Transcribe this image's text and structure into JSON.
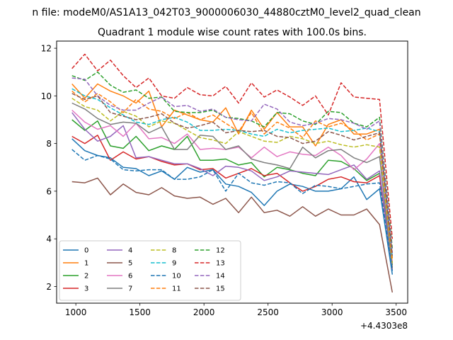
{
  "suptitle": "n file: modeM0/AS1A13_042T03_9000006030_44880cztM0_level2_quad_clean",
  "chart_data": {
    "type": "line",
    "title": "Quadrant 1 module wise count rates with 100.0s bins.",
    "xlabel": "",
    "ylabel": "",
    "x_offset_label": "+4.4303e8",
    "xlim": [
      850,
      3590
    ],
    "ylim": [
      1.3,
      12.3
    ],
    "xticks": [
      1000,
      1500,
      2000,
      2500,
      3000,
      3500
    ],
    "yticks": [
      2,
      4,
      6,
      8,
      10,
      12
    ],
    "grid": false,
    "legend": {
      "placement": "lower-left",
      "columns": 4
    },
    "x": [
      970,
      1070,
      1170,
      1270,
      1370,
      1470,
      1570,
      1670,
      1770,
      1870,
      1970,
      2070,
      2170,
      2270,
      2370,
      2470,
      2570,
      2670,
      2770,
      2870,
      2970,
      3070,
      3170,
      3270,
      3370,
      3470
    ],
    "series": [
      {
        "name": "0",
        "color": "#1f77b4",
        "dash": "solid",
        "values": [
          8.2,
          7.7,
          7.5,
          7.4,
          7.0,
          6.95,
          6.65,
          6.85,
          6.5,
          7.0,
          6.8,
          6.9,
          6.3,
          6.2,
          5.95,
          5.4,
          6.0,
          6.3,
          6.2,
          6.0,
          6.0,
          6.1,
          6.6,
          5.65,
          6.1,
          2.5
        ]
      },
      {
        "name": "1",
        "color": "#ff7f0e",
        "dash": "solid",
        "values": [
          10.5,
          9.9,
          10.5,
          10.2,
          10.0,
          9.7,
          10.2,
          8.7,
          9.4,
          9.2,
          9.0,
          8.9,
          9.5,
          8.4,
          9.4,
          8.6,
          9.3,
          8.7,
          8.7,
          7.9,
          8.8,
          9.0,
          8.4,
          8.4,
          8.6,
          3.2
        ]
      },
      {
        "name": "2",
        "color": "#2ca02c",
        "dash": "solid",
        "values": [
          9.0,
          8.55,
          8.95,
          7.9,
          7.8,
          8.3,
          7.7,
          7.9,
          7.75,
          8.3,
          7.3,
          7.3,
          7.35,
          7.1,
          7.2,
          6.6,
          7.0,
          6.9,
          6.75,
          6.65,
          7.3,
          7.25,
          6.95,
          6.45,
          6.75,
          2.9
        ]
      },
      {
        "name": "3",
        "color": "#d62728",
        "dash": "solid",
        "values": [
          8.3,
          8.0,
          8.35,
          7.3,
          7.65,
          7.35,
          7.45,
          7.25,
          7.1,
          7.15,
          6.9,
          6.95,
          6.55,
          6.75,
          6.95,
          6.65,
          6.75,
          6.35,
          6.0,
          6.2,
          6.5,
          6.6,
          6.4,
          6.35,
          6.65,
          2.8
        ]
      },
      {
        "name": "4",
        "color": "#9467bd",
        "dash": "solid",
        "values": [
          9.3,
          8.6,
          8.1,
          8.3,
          8.75,
          7.4,
          7.45,
          7.3,
          7.15,
          7.15,
          6.95,
          6.65,
          7.05,
          7.0,
          6.85,
          6.45,
          6.6,
          6.85,
          6.8,
          6.75,
          6.7,
          6.9,
          7.1,
          6.5,
          6.85,
          2.7
        ]
      },
      {
        "name": "5",
        "color": "#8c564b",
        "dash": "solid",
        "values": [
          6.4,
          6.35,
          6.55,
          5.85,
          6.3,
          5.95,
          5.85,
          6.15,
          5.8,
          5.7,
          5.75,
          5.45,
          5.7,
          5.1,
          5.75,
          5.1,
          5.2,
          4.95,
          5.35,
          4.95,
          5.25,
          5.0,
          5.0,
          5.25,
          4.6,
          1.75
        ]
      },
      {
        "name": "6",
        "color": "#e377c2",
        "dash": "solid",
        "values": [
          9.4,
          8.9,
          8.6,
          8.75,
          8.3,
          8.85,
          8.2,
          8.25,
          8.0,
          8.4,
          7.75,
          7.8,
          7.75,
          7.85,
          7.4,
          7.85,
          7.45,
          7.65,
          7.55,
          7.5,
          7.85,
          7.5,
          6.9,
          7.35,
          8.0,
          3.0
        ]
      },
      {
        "name": "7",
        "color": "#7f7f7f",
        "dash": "solid",
        "values": [
          9.7,
          9.45,
          9.05,
          8.8,
          8.9,
          8.85,
          8.45,
          8.7,
          7.75,
          7.75,
          8.35,
          8.3,
          7.75,
          7.9,
          7.35,
          7.2,
          7.1,
          6.95,
          7.85,
          7.4,
          7.7,
          7.75,
          7.4,
          7.2,
          7.45,
          2.75
        ]
      },
      {
        "name": "8",
        "color": "#bcbd22",
        "dash": "dashed",
        "values": [
          9.9,
          9.55,
          9.4,
          8.95,
          9.35,
          9.15,
          8.7,
          8.95,
          8.85,
          8.55,
          8.25,
          8.15,
          8.0,
          8.5,
          8.3,
          8.1,
          8.05,
          8.3,
          8.2,
          8.0,
          8.1,
          7.95,
          7.85,
          7.95,
          7.85,
          3.0
        ]
      },
      {
        "name": "9",
        "color": "#17becf",
        "dash": "dashed",
        "values": [
          10.3,
          10.0,
          9.85,
          9.5,
          9.2,
          8.9,
          8.8,
          9.0,
          9.1,
          8.9,
          8.55,
          8.55,
          8.6,
          8.55,
          8.4,
          8.3,
          8.6,
          8.45,
          8.55,
          8.6,
          8.65,
          8.5,
          8.55,
          8.65,
          8.5,
          3.2
        ]
      },
      {
        "name": "10",
        "color": "#1f77b4",
        "dash": "dashed",
        "values": [
          7.75,
          7.3,
          7.5,
          7.35,
          6.9,
          6.85,
          6.9,
          6.9,
          6.5,
          6.5,
          6.6,
          6.9,
          6.0,
          6.75,
          6.35,
          6.25,
          6.4,
          6.35,
          5.9,
          6.25,
          6.2,
          6.1,
          6.2,
          6.3,
          6.35,
          2.65
        ]
      },
      {
        "name": "11",
        "color": "#ff7f0e",
        "dash": "dashed",
        "values": [
          10.2,
          9.75,
          10.1,
          9.75,
          9.3,
          9.85,
          9.45,
          9.35,
          9.05,
          9.3,
          9.0,
          9.2,
          8.85,
          8.5,
          9.3,
          8.4,
          8.9,
          8.65,
          8.25,
          8.95,
          8.7,
          8.85,
          8.55,
          8.15,
          8.4,
          3.1
        ]
      },
      {
        "name": "12",
        "color": "#2ca02c",
        "dash": "dashed",
        "values": [
          10.85,
          10.65,
          11.0,
          10.45,
          10.15,
          10.25,
          9.9,
          9.95,
          9.35,
          9.3,
          9.3,
          9.4,
          9.1,
          9.05,
          8.95,
          8.7,
          9.3,
          9.25,
          8.95,
          8.8,
          9.35,
          9.3,
          8.85,
          8.7,
          9.1,
          3.6
        ]
      },
      {
        "name": "13",
        "color": "#d62728",
        "dash": "dashed",
        "values": [
          11.15,
          11.75,
          11.05,
          11.5,
          10.85,
          10.35,
          10.75,
          10.0,
          9.9,
          10.35,
          10.05,
          10.0,
          10.4,
          9.7,
          10.55,
          9.95,
          10.25,
          9.95,
          9.6,
          10.0,
          9.2,
          10.55,
          9.95,
          9.9,
          9.85,
          4.0
        ]
      },
      {
        "name": "14",
        "color": "#9467bd",
        "dash": "dashed",
        "values": [
          10.75,
          10.7,
          10.0,
          9.6,
          9.4,
          9.4,
          9.7,
          9.95,
          9.55,
          9.6,
          9.35,
          9.45,
          9.1,
          9.0,
          8.95,
          9.65,
          9.45,
          8.9,
          8.75,
          8.85,
          9.05,
          9.0,
          8.85,
          8.6,
          8.95,
          3.4
        ]
      },
      {
        "name": "15",
        "color": "#8c564b",
        "dash": "dashed",
        "values": [
          10.1,
          9.85,
          10.0,
          9.3,
          9.15,
          9.0,
          9.1,
          9.25,
          8.85,
          8.65,
          8.75,
          8.9,
          8.45,
          8.55,
          8.5,
          8.55,
          8.3,
          8.25,
          8.0,
          8.1,
          8.5,
          8.35,
          8.15,
          8.3,
          8.45,
          3.3
        ]
      }
    ]
  }
}
